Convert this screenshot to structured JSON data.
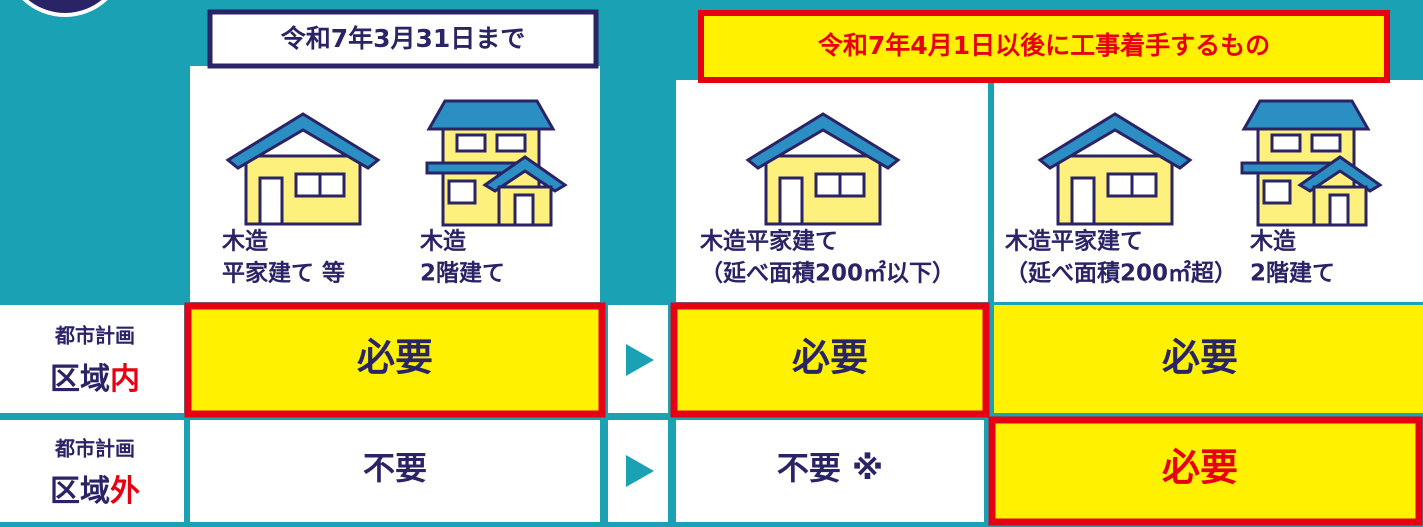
{
  "header": {
    "left_period": "令和7年3月31日まで",
    "right_period": "令和7年4月1日以後に工事着手するもの"
  },
  "houses": [
    {
      "lines": [
        "木造",
        "平家建て 等"
      ]
    },
    {
      "lines": [
        "木造",
        "2階建て"
      ]
    },
    {
      "lines": [
        "木造平家建て",
        "（延べ面積200㎡以下）"
      ]
    },
    {
      "lines": [
        "木造平家建て",
        "（延べ面積200㎡超）"
      ]
    },
    {
      "lines": [
        "木造",
        "2階建て"
      ]
    }
  ],
  "rows": [
    {
      "label_small": "都市計画",
      "label_main": "区域",
      "label_accent": "内",
      "cells": [
        "必要",
        "必要",
        "必要"
      ]
    },
    {
      "label_small": "都市計画",
      "label_main": "区域",
      "label_accent": "外",
      "cells": [
        "不要",
        "不要 ※",
        "必要"
      ]
    }
  ]
}
